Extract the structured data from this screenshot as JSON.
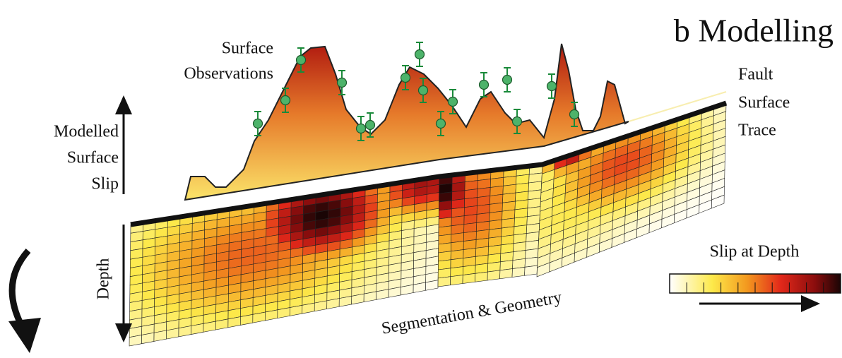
{
  "title": "b Modelling",
  "surface_observations": [
    "Surface",
    "Observations"
  ],
  "fault_surface_trace": [
    "Fault",
    "Surface",
    "Trace"
  ],
  "modelled_surface_slip": [
    "Modelled",
    "Surface",
    "Slip"
  ],
  "depth_label": "Depth",
  "legend_title": "Slip at Depth",
  "segmentation_label": "Segmentation & Geometry"
}
